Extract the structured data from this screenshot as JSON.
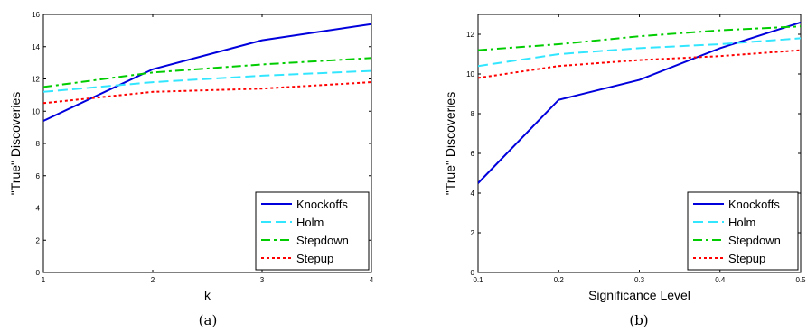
{
  "chart_data": [
    {
      "type": "line",
      "caption": "(a)",
      "xlabel": "k",
      "ylabel": "\"True\" Discoveries",
      "x": [
        1,
        2,
        3,
        4
      ],
      "xticks": [
        "1",
        "2",
        "3",
        "4"
      ],
      "yticks": [
        "0",
        "2",
        "4",
        "6",
        "8",
        "10",
        "12",
        "14",
        "16"
      ],
      "xlim": [
        1,
        4
      ],
      "ylim": [
        0,
        16
      ],
      "legend_position": "bottom-right",
      "series": [
        {
          "name": "Knockoffs",
          "values": [
            9.4,
            12.6,
            14.4,
            15.4
          ],
          "color": "#0000dd",
          "dash": "solid"
        },
        {
          "name": "Holm",
          "values": [
            11.2,
            11.8,
            12.2,
            12.5
          ],
          "color": "#33e6ff",
          "dash": "dashed"
        },
        {
          "name": "Stepdown",
          "values": [
            11.5,
            12.4,
            12.9,
            13.3
          ],
          "color": "#00cc00",
          "dash": "dashdot"
        },
        {
          "name": "Stepup",
          "values": [
            10.5,
            11.2,
            11.4,
            11.8
          ],
          "color": "#ff0000",
          "dash": "dotted"
        }
      ]
    },
    {
      "type": "line",
      "caption": "(b)",
      "xlabel": "Significance Level",
      "ylabel": "\"True\" Discoveries",
      "x": [
        0.1,
        0.2,
        0.3,
        0.4,
        0.5
      ],
      "xticks": [
        "0.1",
        "0.2",
        "0.3",
        "0.4",
        "0.5"
      ],
      "yticks": [
        "0",
        "2",
        "4",
        "6",
        "8",
        "10",
        "12"
      ],
      "xlim": [
        0.1,
        0.5
      ],
      "ylim": [
        0,
        13
      ],
      "legend_position": "bottom-right",
      "series": [
        {
          "name": "Knockoffs",
          "values": [
            4.5,
            8.7,
            9.7,
            11.3,
            12.6
          ],
          "color": "#0000dd",
          "dash": "solid"
        },
        {
          "name": "Holm",
          "values": [
            10.4,
            11.0,
            11.3,
            11.5,
            11.8
          ],
          "color": "#33e6ff",
          "dash": "dashed"
        },
        {
          "name": "Stepdown",
          "values": [
            11.2,
            11.5,
            11.9,
            12.2,
            12.4
          ],
          "color": "#00cc00",
          "dash": "dashdot"
        },
        {
          "name": "Stepup",
          "values": [
            9.8,
            10.4,
            10.7,
            10.9,
            11.2
          ],
          "color": "#ff0000",
          "dash": "dotted"
        }
      ]
    }
  ]
}
